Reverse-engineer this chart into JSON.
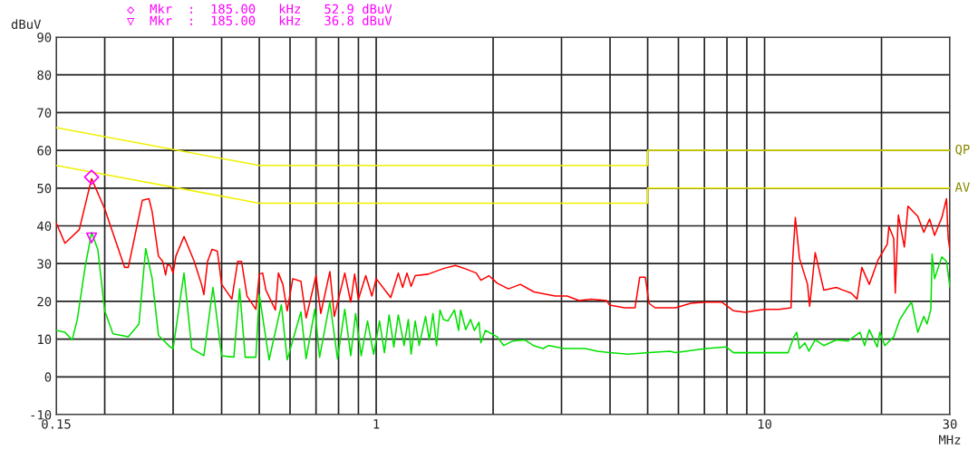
{
  "chart_data": {
    "type": "line",
    "xlabel": "MHz",
    "ylabel": "dBuV",
    "log": "x",
    "grid": true,
    "xlim": [
      0.15,
      30
    ],
    "ylim": [
      -10,
      90
    ],
    "xticks": [
      {
        "value": 0.15,
        "label": "0.15"
      },
      {
        "value": 0.2,
        "label": null
      },
      {
        "value": 0.3,
        "label": null
      },
      {
        "value": 0.4,
        "label": null
      },
      {
        "value": 0.5,
        "label": null
      },
      {
        "value": 0.6,
        "label": null
      },
      {
        "value": 0.7,
        "label": null
      },
      {
        "value": 0.8,
        "label": null
      },
      {
        "value": 0.9,
        "label": null
      },
      1,
      {
        "value": 2,
        "label": null
      },
      {
        "value": 3,
        "label": null
      },
      {
        "value": 4,
        "label": null
      },
      {
        "value": 5,
        "label": null
      },
      {
        "value": 6,
        "label": null
      },
      {
        "value": 7,
        "label": null
      },
      {
        "value": 8,
        "label": null
      },
      {
        "value": 9,
        "label": null
      },
      10,
      {
        "value": 20,
        "label": null
      },
      30
    ],
    "yticks": [
      -10,
      0,
      10,
      20,
      30,
      40,
      50,
      60,
      70,
      80,
      90
    ],
    "annotations": [
      "◇  Mkr  :  185.00   kHz   52.9 dBuV",
      "▽  Mkr  :  185.00   kHz   36.8 dBuV"
    ],
    "series": [
      {
        "name": "QP",
        "color": "#f0f000",
        "x": [
          0.15,
          0.5,
          5,
          5,
          30
        ],
        "values": [
          66,
          56,
          56,
          60,
          60
        ]
      },
      {
        "name": "AV",
        "color": "#f0f000",
        "x": [
          0.15,
          0.5,
          5,
          5,
          30
        ],
        "values": [
          56,
          46,
          46,
          50,
          50
        ]
      },
      {
        "color": "#ff0000",
        "x": [
          0.15,
          0.158,
          0.172,
          0.185,
          0.2,
          0.225,
          0.23,
          0.25,
          0.26,
          0.265,
          0.275,
          0.282,
          0.287,
          0.29,
          0.295,
          0.3,
          0.305,
          0.32,
          0.34,
          0.355,
          0.36,
          0.368,
          0.378,
          0.39,
          0.4,
          0.425,
          0.44,
          0.45,
          0.465,
          0.49,
          0.5,
          0.51,
          0.52,
          0.55,
          0.56,
          0.575,
          0.59,
          0.61,
          0.64,
          0.66,
          0.7,
          0.72,
          0.76,
          0.78,
          0.83,
          0.86,
          0.88,
          0.9,
          0.94,
          0.975,
          1.0,
          1.09,
          1.14,
          1.17,
          1.2,
          1.23,
          1.26,
          1.36,
          1.49,
          1.6,
          1.69,
          1.81,
          1.86,
          1.95,
          2.05,
          2.19,
          2.35,
          2.55,
          2.89,
          3.1,
          3.33,
          3.58,
          3.92,
          3.99,
          4.36,
          4.64,
          4.77,
          4.93,
          5.04,
          5.22,
          5.7,
          5.9,
          6.46,
          7.07,
          7.75,
          8.32,
          8.93,
          9.95,
          10.9,
          11.7,
          11.8,
          12.0,
          12.3,
          12.9,
          13.06,
          13.4,
          13.5,
          14.2,
          15.3,
          15.9,
          16.7,
          17.3,
          17.8,
          18.6,
          19.6,
          20.7,
          20.9,
          21.5,
          21.7,
          22.1,
          22.9,
          23.4,
          24.8,
          25.7,
          26.6,
          27.4,
          28.6,
          29.4,
          29.7,
          30
        ],
        "values": [
          40.8,
          35.4,
          39,
          52.5,
          44.5,
          29,
          29,
          46.8,
          47.2,
          43.7,
          32,
          30.6,
          27,
          29.7,
          29.5,
          27.5,
          32,
          37.2,
          30.6,
          24.5,
          21.8,
          30.6,
          33.8,
          33.3,
          24.5,
          20.6,
          30.6,
          30.6,
          21.4,
          17.9,
          27.2,
          27.5,
          23,
          17.7,
          27.5,
          24.5,
          17.5,
          26,
          25.3,
          15.6,
          26.8,
          16.8,
          27.9,
          16,
          27.5,
          19.8,
          27.2,
          20.6,
          26.8,
          21.4,
          26,
          21,
          27.5,
          23.7,
          27.5,
          24,
          26.8,
          27.2,
          28.7,
          29.5,
          28.7,
          27.5,
          25.6,
          26.8,
          24.8,
          23.3,
          24.5,
          22.5,
          21.4,
          21.4,
          20.2,
          20.6,
          20.2,
          19,
          18.3,
          18.3,
          26.4,
          26.4,
          19.5,
          18.3,
          18.3,
          18.3,
          19.5,
          19.8,
          19.8,
          17.5,
          17.1,
          17.9,
          17.9,
          18.3,
          30.2,
          42.2,
          31.4,
          24.5,
          18.7,
          29.8,
          32.9,
          23,
          23.7,
          23,
          22.2,
          20.6,
          29,
          24.5,
          31,
          35.2,
          39.8,
          36.7,
          22.2,
          42.9,
          34.4,
          45.2,
          42.5,
          38.3,
          41.8,
          37.5,
          42.2,
          47.2,
          36.7,
          33.7
        ]
      },
      {
        "color": "#00e000",
        "x": [
          0.15,
          0.158,
          0.165,
          0.17,
          0.178,
          0.185,
          0.192,
          0.2,
          0.21,
          0.23,
          0.245,
          0.255,
          0.265,
          0.275,
          0.295,
          0.3,
          0.32,
          0.335,
          0.36,
          0.38,
          0.4,
          0.43,
          0.445,
          0.46,
          0.49,
          0.5,
          0.53,
          0.57,
          0.59,
          0.64,
          0.66,
          0.695,
          0.715,
          0.76,
          0.795,
          0.83,
          0.86,
          0.885,
          0.915,
          0.95,
          0.985,
          1.02,
          1.05,
          1.08,
          1.11,
          1.14,
          1.18,
          1.21,
          1.23,
          1.26,
          1.29,
          1.34,
          1.37,
          1.4,
          1.43,
          1.46,
          1.49,
          1.53,
          1.59,
          1.63,
          1.65,
          1.7,
          1.75,
          1.79,
          1.84,
          1.86,
          1.91,
          2.05,
          2.13,
          2.25,
          2.41,
          2.54,
          2.69,
          2.78,
          3.05,
          3.45,
          3.71,
          3.99,
          4.45,
          5.04,
          5.7,
          5.9,
          7.07,
          7.97,
          8.32,
          8.93,
          10.1,
          11.5,
          11.9,
          12.1,
          12.3,
          12.7,
          13.0,
          13.5,
          14.2,
          15.3,
          16.4,
          17.6,
          18.1,
          18.6,
          19.5,
          19.8,
          20.4,
          21.5,
          22.3,
          23.3,
          23.9,
          24.8,
          25.7,
          26.2,
          26.8,
          27.0,
          27.4,
          28.6,
          29.4,
          30
        ],
        "values": [
          12.3,
          11.8,
          9.8,
          15.2,
          29,
          38.3,
          33.7,
          17.5,
          11.4,
          10.6,
          14,
          34,
          26,
          11,
          7.9,
          7.5,
          27.5,
          7.5,
          5.6,
          23.7,
          5.6,
          5.2,
          23.3,
          5.2,
          5.2,
          21.8,
          4.5,
          19.1,
          4.5,
          17.2,
          4.8,
          17.9,
          5.2,
          19.8,
          4.8,
          17.9,
          5.6,
          16.8,
          5.6,
          14.8,
          6,
          14.8,
          6.4,
          16.4,
          7.9,
          16.4,
          8.3,
          15.2,
          6,
          14.8,
          8.3,
          16,
          9.8,
          16.8,
          8.3,
          17.7,
          15.2,
          14.8,
          17.7,
          12.3,
          17.7,
          12.5,
          15.2,
          12.3,
          14.5,
          9,
          12.3,
          10.6,
          8.3,
          9.5,
          9.8,
          8.3,
          7.5,
          8.3,
          7.5,
          7.5,
          6.8,
          6.4,
          6,
          6.4,
          6.8,
          6.4,
          7.5,
          7.9,
          6.4,
          6.4,
          6.4,
          6.4,
          10.6,
          11.8,
          7.5,
          9,
          6.8,
          9.8,
          8.3,
          9.8,
          9.5,
          11.8,
          8.3,
          12.5,
          7.9,
          11.8,
          8.3,
          10.6,
          15.2,
          18.3,
          19.8,
          11.8,
          16,
          14,
          17.9,
          32.5,
          26,
          31.8,
          30.6,
          23.7
        ]
      },
      {
        "type": "scatter",
        "marker": "diamond",
        "color": "#ff00ff",
        "x": [
          0.185
        ],
        "values": [
          52.9
        ]
      },
      {
        "type": "scatter",
        "marker": "triangle",
        "color": "#ff00ff",
        "x": [
          0.185
        ],
        "values": [
          36.8
        ]
      }
    ]
  }
}
